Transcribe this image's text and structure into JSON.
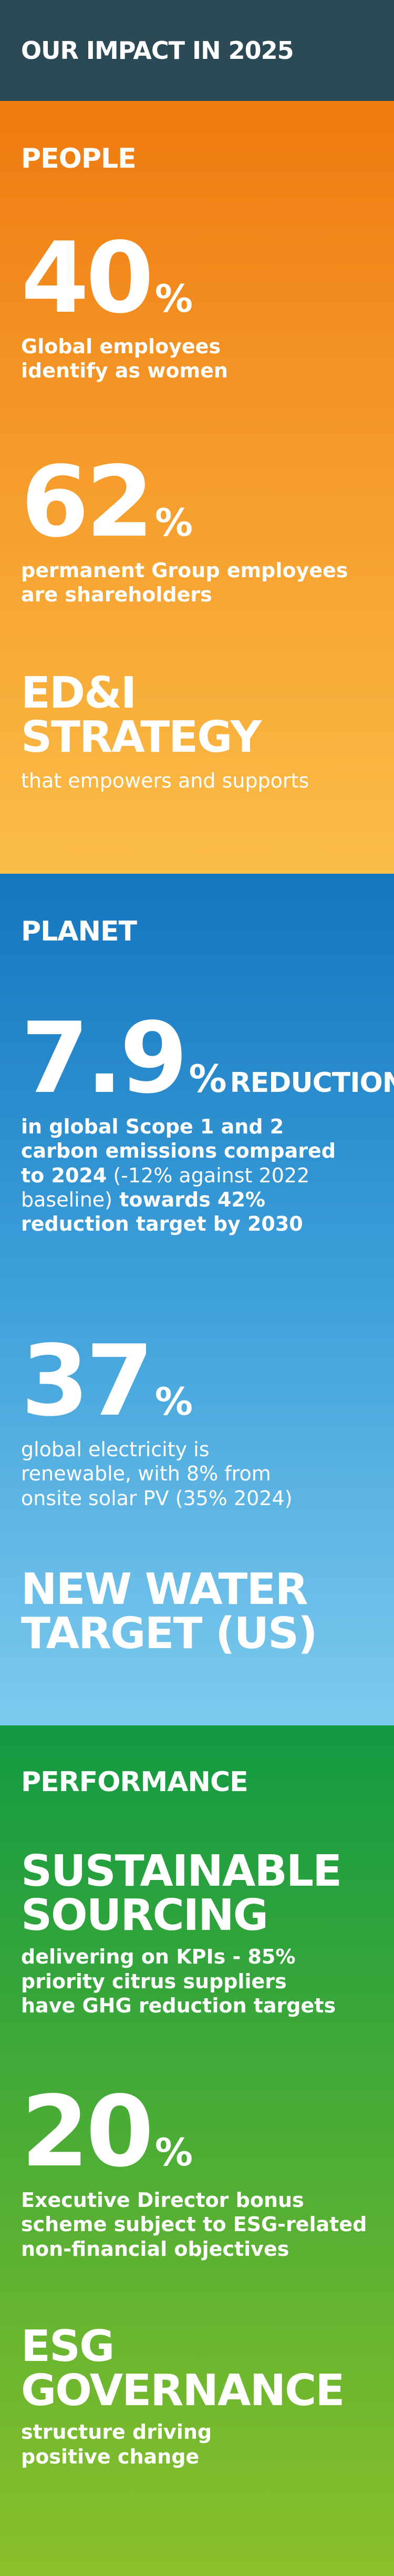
{
  "header": {
    "title": "OUR IMPACT IN 2025"
  },
  "people": {
    "title": "PEOPLE",
    "stat1": {
      "value": "40",
      "unit": "%",
      "line1": "Global employees",
      "line2": "identify as women"
    },
    "stat2": {
      "value": "62",
      "unit": "%",
      "line1": "permanent Group employees",
      "line2": "are shareholders"
    },
    "stat3": {
      "line1": "ED&I",
      "line2": "STRATEGY",
      "desc": "that empowers and supports"
    }
  },
  "planet": {
    "title": "PLANET",
    "stat1": {
      "value": "7.9",
      "unit": "%",
      "suffix": "REDUCTION",
      "line1": "in global Scope 1 and 2",
      "line2": "carbon emissions compared",
      "line3a": "to 2024",
      "line3b": " (-12% against 2022",
      "line4a": "baseline)",
      "line4b": " towards 42%",
      "line5": "reduction target by 2030"
    },
    "stat2": {
      "value": "37",
      "unit": "%",
      "line1": "global electricity is",
      "line2": "renewable, with 8% from",
      "line3": "onsite solar PV (35% 2024)"
    },
    "stat3": {
      "line1": "NEW WATER",
      "line2": "TARGET (US)"
    }
  },
  "performance": {
    "title": "PERFORMANCE",
    "stat1": {
      "line1": "SUSTAINABLE",
      "line2": "SOURCING",
      "desc1": "delivering on KPIs - 85%",
      "desc2": "priority citrus suppliers",
      "desc3": "have GHG reduction targets"
    },
    "stat2": {
      "value": "20",
      "unit": "%",
      "line1": "Executive Director bonus",
      "line2": "scheme subject to ESG-related",
      "line3": "non-financial objectives"
    },
    "stat3": {
      "line1": "ESG",
      "line2": "GOVERNANCE",
      "desc1": "structure driving",
      "desc2": "positive change"
    }
  }
}
